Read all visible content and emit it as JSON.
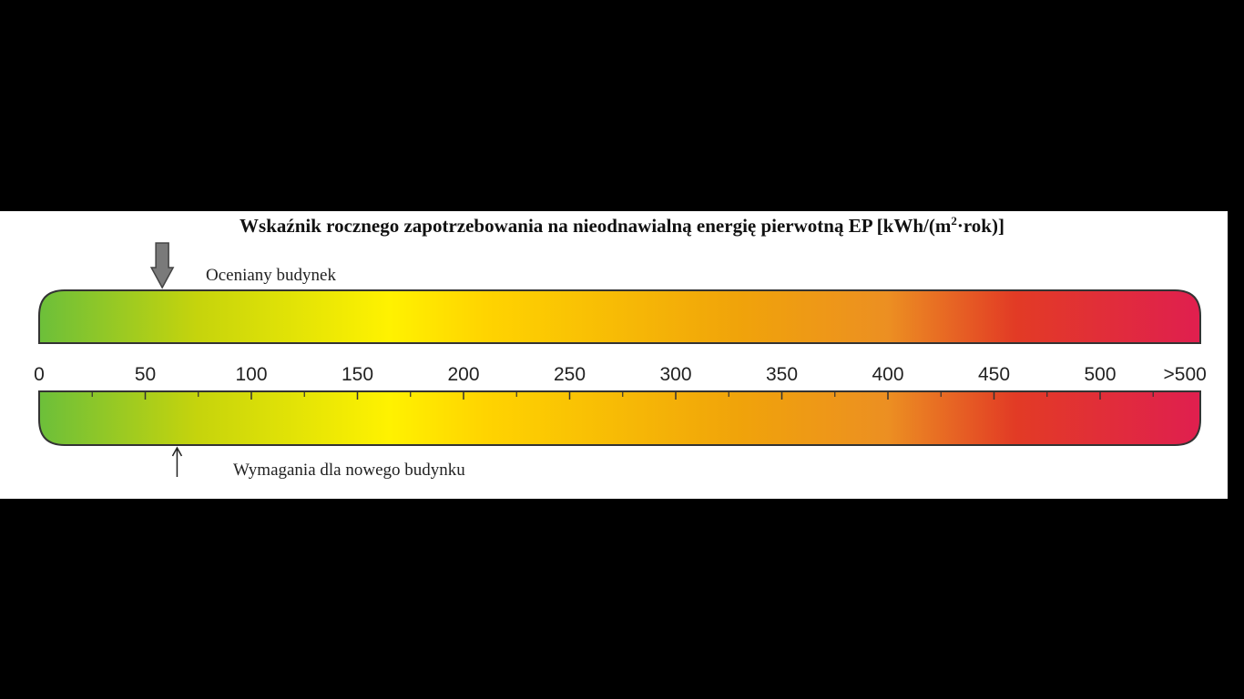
{
  "chart_data": {
    "type": "scale",
    "title": {
      "text_before_sup": "Wskaźnik rocznego zapotrzebowania na nieodnawialną energię pierwotną EP [kWh/(m",
      "sup": "2",
      "text_after_sup": "·rok)]"
    },
    "axis": {
      "min": 0,
      "max": 550,
      "major_ticks": [
        0,
        50,
        100,
        150,
        200,
        250,
        300,
        350,
        400,
        450,
        500
      ],
      "minor_ticks": [
        25,
        75,
        125,
        175,
        225,
        275,
        325,
        375,
        425,
        475,
        525
      ],
      "tick_labels": [
        "0",
        "50",
        "100",
        "150",
        "200",
        "250",
        "300",
        "350",
        "400",
        "450",
        "500",
        ">500"
      ],
      "tick_label_values": [
        0,
        50,
        100,
        150,
        200,
        250,
        300,
        350,
        400,
        450,
        500,
        540
      ]
    },
    "gradient_stops": [
      {
        "value": 0,
        "color": "#6cbf3a"
      },
      {
        "value": 75,
        "color": "#c6d40c"
      },
      {
        "value": 165,
        "color": "#fff200"
      },
      {
        "value": 210,
        "color": "#ffd400"
      },
      {
        "value": 330,
        "color": "#f0a30a"
      },
      {
        "value": 400,
        "color": "#ec8f22"
      },
      {
        "value": 460,
        "color": "#e23b25"
      },
      {
        "value": 550,
        "color": "#e01f4f"
      }
    ],
    "markers": [
      {
        "name": "Oceniany budynek",
        "value": 58,
        "position": "above"
      },
      {
        "name": "Wymagania dla nowego budynku",
        "value": 65,
        "position": "below"
      }
    ]
  }
}
